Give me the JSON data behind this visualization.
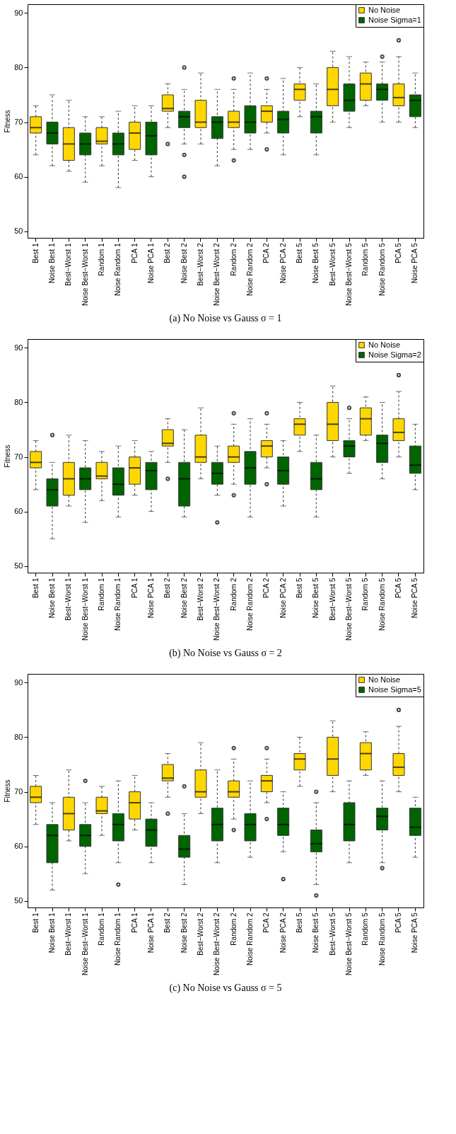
{
  "chart_data": [
    {
      "type": "box",
      "title": "(a) No Noise vs Gauss σ = 1",
      "ylabel": "Fitness",
      "ylim": [
        48.8,
        91.6
      ],
      "yticks": [
        50,
        60,
        70,
        80,
        90
      ],
      "legend": "top right",
      "categories": [
        "Best 1",
        "Noise Best 1",
        "Best−Worst 1",
        "Noise Best−Worst 1",
        "Random 1",
        "Noise Random 1",
        "PCA 1",
        "Noise PCA 1",
        "Best 2",
        "Noise Best 2",
        "Best−Worst 2",
        "Noise Best−Worst 2",
        "Random 2",
        "Noise Random 2",
        "PCA 2",
        "Noise PCA 2",
        "Best 5",
        "Noise Best 5",
        "Best−Worst 5",
        "Noise Best−Worst 5",
        "Random 5",
        "Noise Random 5",
        "PCA 5",
        "Noise PCA 5"
      ],
      "series": [
        {
          "name": "No Noise",
          "color": "#ffd700",
          "x": [
            "Best 1",
            "Best−Worst 1",
            "Random 1",
            "PCA 1",
            "Best 2",
            "Best−Worst 2",
            "Random 2",
            "PCA 2",
            "Best 5",
            "Best−Worst 5",
            "Random 5",
            "PCA 5"
          ],
          "boxes": [
            {
              "low": 64,
              "q1": 68,
              "median": 69,
              "q3": 71,
              "high": 73
            },
            {
              "low": 61,
              "q1": 63,
              "median": 66,
              "q3": 69,
              "high": 74
            },
            {
              "low": 62,
              "q1": 66,
              "median": 66.5,
              "q3": 69,
              "high": 71
            },
            {
              "low": 63,
              "q1": 65,
              "median": 68,
              "q3": 70,
              "high": 73
            },
            {
              "low": 69,
              "q1": 72,
              "median": 72.5,
              "q3": 75,
              "high": 77,
              "outliers": [
                66
              ]
            },
            {
              "low": 66,
              "q1": 69,
              "median": 70,
              "q3": 74,
              "high": 79
            },
            {
              "low": 65,
              "q1": 69,
              "median": 70,
              "q3": 72,
              "high": 76,
              "outliers": [
                78,
                63
              ]
            },
            {
              "low": 68,
              "q1": 70,
              "median": 72,
              "q3": 73,
              "high": 76,
              "outliers": [
                78,
                65
              ]
            },
            {
              "low": 71,
              "q1": 74,
              "median": 76,
              "q3": 77,
              "high": 80
            },
            {
              "low": 70,
              "q1": 73,
              "median": 76,
              "q3": 80,
              "high": 83
            },
            {
              "low": 73,
              "q1": 74,
              "median": 77,
              "q3": 79,
              "high": 81
            },
            {
              "low": 70,
              "q1": 73,
              "median": 74.5,
              "q3": 77,
              "high": 82,
              "outliers": [
                85
              ]
            }
          ]
        },
        {
          "name": "Noise Sigma=1",
          "color": "#006400",
          "x": [
            "Noise Best 1",
            "Noise Best−Worst 1",
            "Noise Random 1",
            "Noise PCA 1",
            "Noise Best 2",
            "Noise Best−Worst 2",
            "Noise Random 2",
            "Noise PCA 2",
            "Noise Best 5",
            "Noise Best−Worst 5",
            "Noise Random 5",
            "Noise PCA 5"
          ],
          "boxes": [
            {
              "low": 62,
              "q1": 66,
              "median": 68,
              "q3": 70,
              "high": 75
            },
            {
              "low": 59,
              "q1": 64,
              "median": 66,
              "q3": 68,
              "high": 71
            },
            {
              "low": 58,
              "q1": 64,
              "median": 66,
              "q3": 68,
              "high": 72
            },
            {
              "low": 60,
              "q1": 64,
              "median": 67.5,
              "q3": 70,
              "high": 73
            },
            {
              "low": 66,
              "q1": 69,
              "median": 71,
              "q3": 72,
              "high": 76,
              "outliers": [
                80,
                64,
                60
              ]
            },
            {
              "low": 62,
              "q1": 67,
              "median": 70,
              "q3": 71,
              "high": 76
            },
            {
              "low": 65,
              "q1": 68,
              "median": 70,
              "q3": 73,
              "high": 79
            },
            {
              "low": 64,
              "q1": 68,
              "median": 70.5,
              "q3": 72,
              "high": 78
            },
            {
              "low": 64,
              "q1": 68,
              "median": 71,
              "q3": 72,
              "high": 77
            },
            {
              "low": 69,
              "q1": 72,
              "median": 74,
              "q3": 77,
              "high": 82
            },
            {
              "low": 70,
              "q1": 74,
              "median": 76,
              "q3": 77,
              "high": 81,
              "outliers": [
                82
              ]
            },
            {
              "low": 69,
              "q1": 71,
              "median": 74,
              "q3": 75,
              "high": 79
            }
          ]
        }
      ]
    },
    {
      "type": "box",
      "title": "(b) No Noise vs Gauss σ = 2",
      "ylabel": "Fitness",
      "ylim": [
        48.8,
        91.6
      ],
      "yticks": [
        50,
        60,
        70,
        80,
        90
      ],
      "legend": "top right",
      "categories": [
        "Best 1",
        "Noise Best 1",
        "Best−Worst 1",
        "Noise Best−Worst 1",
        "Random 1",
        "Noise Random 1",
        "PCA 1",
        "Noise PCA 1",
        "Best 2",
        "Noise Best 2",
        "Best−Worst 2",
        "Noise Best−Worst 2",
        "Random 2",
        "Noise Random 2",
        "PCA 2",
        "Noise PCA 2",
        "Best 5",
        "Noise Best 5",
        "Best−Worst 5",
        "Noise Best−Worst 5",
        "Random 5",
        "Noise Random 5",
        "PCA 5",
        "Noise PCA 5"
      ],
      "series": [
        {
          "name": "No Noise",
          "color": "#ffd700",
          "x": [
            "Best 1",
            "Best−Worst 1",
            "Random 1",
            "PCA 1",
            "Best 2",
            "Best−Worst 2",
            "Random 2",
            "PCA 2",
            "Best 5",
            "Best−Worst 5",
            "Random 5",
            "PCA 5"
          ],
          "boxes": [
            {
              "low": 64,
              "q1": 68,
              "median": 69,
              "q3": 71,
              "high": 73
            },
            {
              "low": 61,
              "q1": 63,
              "median": 66,
              "q3": 69,
              "high": 74
            },
            {
              "low": 62,
              "q1": 66,
              "median": 66.5,
              "q3": 69,
              "high": 71
            },
            {
              "low": 63,
              "q1": 65,
              "median": 68,
              "q3": 70,
              "high": 73
            },
            {
              "low": 69,
              "q1": 72,
              "median": 72.5,
              "q3": 75,
              "high": 77,
              "outliers": [
                66
              ]
            },
            {
              "low": 66,
              "q1": 69,
              "median": 70,
              "q3": 74,
              "high": 79
            },
            {
              "low": 65,
              "q1": 69,
              "median": 70,
              "q3": 72,
              "high": 76,
              "outliers": [
                78,
                63
              ]
            },
            {
              "low": 68,
              "q1": 70,
              "median": 72,
              "q3": 73,
              "high": 76,
              "outliers": [
                78,
                65
              ]
            },
            {
              "low": 71,
              "q1": 74,
              "median": 76,
              "q3": 77,
              "high": 80
            },
            {
              "low": 70,
              "q1": 73,
              "median": 76,
              "q3": 80,
              "high": 83
            },
            {
              "low": 73,
              "q1": 74,
              "median": 77,
              "q3": 79,
              "high": 81
            },
            {
              "low": 70,
              "q1": 73,
              "median": 74.5,
              "q3": 77,
              "high": 82,
              "outliers": [
                85
              ]
            }
          ]
        },
        {
          "name": "Noise Sigma=2",
          "color": "#006400",
          "x": [
            "Noise Best 1",
            "Noise Best−Worst 1",
            "Noise Random 1",
            "Noise PCA 1",
            "Noise Best 2",
            "Noise Best−Worst 2",
            "Noise Random 2",
            "Noise PCA 2",
            "Noise Best 5",
            "Noise Best−Worst 5",
            "Noise Random 5",
            "Noise PCA 5"
          ],
          "boxes": [
            {
              "low": 55,
              "q1": 61,
              "median": 64,
              "q3": 66,
              "high": 69,
              "outliers": [
                74
              ]
            },
            {
              "low": 58,
              "q1": 64,
              "median": 66,
              "q3": 68,
              "high": 73
            },
            {
              "low": 59,
              "q1": 63,
              "median": 65,
              "q3": 68,
              "high": 72
            },
            {
              "low": 60,
              "q1": 64,
              "median": 67.5,
              "q3": 69,
              "high": 71
            },
            {
              "low": 59,
              "q1": 61,
              "median": 66,
              "q3": 69,
              "high": 75
            },
            {
              "low": 63,
              "q1": 65,
              "median": 67,
              "q3": 69,
              "high": 72,
              "outliers": [
                58
              ]
            },
            {
              "low": 59,
              "q1": 65,
              "median": 68,
              "q3": 71,
              "high": 77
            },
            {
              "low": 61,
              "q1": 65,
              "median": 67.5,
              "q3": 70,
              "high": 73
            },
            {
              "low": 59,
              "q1": 64,
              "median": 66,
              "q3": 69,
              "high": 74
            },
            {
              "low": 67,
              "q1": 70,
              "median": 72,
              "q3": 73,
              "high": 77,
              "outliers": [
                79
              ]
            },
            {
              "low": 66,
              "q1": 69,
              "median": 72.5,
              "q3": 74,
              "high": 80
            },
            {
              "low": 64,
              "q1": 67,
              "median": 68.5,
              "q3": 72,
              "high": 76
            }
          ]
        }
      ]
    },
    {
      "type": "box",
      "title": "(c) No Noise vs Gauss σ = 5",
      "ylabel": "Fitness",
      "ylim": [
        48.8,
        91.6
      ],
      "yticks": [
        50,
        60,
        70,
        80,
        90
      ],
      "legend": "top right",
      "categories": [
        "Best 1",
        "Noise Best 1",
        "Best−Worst 1",
        "Noise Best−Worst 1",
        "Random 1",
        "Noise Random 1",
        "PCA 1",
        "Noise PCA 1",
        "Best 2",
        "Noise Best 2",
        "Best−Worst 2",
        "Noise Best−Worst 2",
        "Random 2",
        "Noise Random 2",
        "PCA 2",
        "Noise PCA 2",
        "Best 5",
        "Noise Best 5",
        "Best−Worst 5",
        "Noise Best−Worst 5",
        "Random 5",
        "Noise Random 5",
        "PCA 5",
        "Noise PCA 5"
      ],
      "series": [
        {
          "name": "No Noise",
          "color": "#ffd700",
          "x": [
            "Best 1",
            "Best−Worst 1",
            "Random 1",
            "PCA 1",
            "Best 2",
            "Best−Worst 2",
            "Random 2",
            "PCA 2",
            "Best 5",
            "Best−Worst 5",
            "Random 5",
            "PCA 5"
          ],
          "boxes": [
            {
              "low": 64,
              "q1": 68,
              "median": 69,
              "q3": 71,
              "high": 73
            },
            {
              "low": 61,
              "q1": 63,
              "median": 66,
              "q3": 69,
              "high": 74
            },
            {
              "low": 62,
              "q1": 66,
              "median": 66.5,
              "q3": 69,
              "high": 71
            },
            {
              "low": 63,
              "q1": 65,
              "median": 68,
              "q3": 70,
              "high": 73
            },
            {
              "low": 69,
              "q1": 72,
              "median": 72.5,
              "q3": 75,
              "high": 77,
              "outliers": [
                66
              ]
            },
            {
              "low": 66,
              "q1": 69,
              "median": 70,
              "q3": 74,
              "high": 79
            },
            {
              "low": 65,
              "q1": 69,
              "median": 70,
              "q3": 72,
              "high": 76,
              "outliers": [
                78,
                63
              ]
            },
            {
              "low": 68,
              "q1": 70,
              "median": 72,
              "q3": 73,
              "high": 76,
              "outliers": [
                78,
                65
              ]
            },
            {
              "low": 71,
              "q1": 74,
              "median": 76,
              "q3": 77,
              "high": 80
            },
            {
              "low": 70,
              "q1": 73,
              "median": 76,
              "q3": 80,
              "high": 83
            },
            {
              "low": 73,
              "q1": 74,
              "median": 77,
              "q3": 79,
              "high": 81
            },
            {
              "low": 70,
              "q1": 73,
              "median": 74.5,
              "q3": 77,
              "high": 82,
              "outliers": [
                85
              ]
            }
          ]
        },
        {
          "name": "Noise Sigma=5",
          "color": "#006400",
          "x": [
            "Noise Best 1",
            "Noise Best−Worst 1",
            "Noise Random 1",
            "Noise PCA 1",
            "Noise Best 2",
            "Noise Best−Worst 2",
            "Noise Random 2",
            "Noise PCA 2",
            "Noise Best 5",
            "Noise Best−Worst 5",
            "Noise Random 5",
            "Noise PCA 5"
          ],
          "boxes": [
            {
              "low": 52,
              "q1": 57,
              "median": 62,
              "q3": 64,
              "high": 68
            },
            {
              "low": 55,
              "q1": 60,
              "median": 62,
              "q3": 64,
              "high": 68,
              "outliers": [
                72
              ]
            },
            {
              "low": 57,
              "q1": 61,
              "median": 64,
              "q3": 66,
              "high": 72,
              "outliers": [
                53
              ]
            },
            {
              "low": 57,
              "q1": 60,
              "median": 63,
              "q3": 65,
              "high": 68
            },
            {
              "low": 53,
              "q1": 58,
              "median": 59.5,
              "q3": 62,
              "high": 66,
              "outliers": [
                71
              ]
            },
            {
              "low": 57,
              "q1": 61,
              "median": 64,
              "q3": 67,
              "high": 74
            },
            {
              "low": 58,
              "q1": 61,
              "median": 64,
              "q3": 66,
              "high": 72
            },
            {
              "low": 59,
              "q1": 62,
              "median": 64,
              "q3": 67,
              "high": 70,
              "outliers": [
                54
              ]
            },
            {
              "low": 53,
              "q1": 59,
              "median": 60.5,
              "q3": 63,
              "high": 68,
              "outliers": [
                70,
                51
              ]
            },
            {
              "low": 57,
              "q1": 61,
              "median": 64,
              "q3": 68,
              "high": 72
            },
            {
              "low": 57,
              "q1": 63,
              "median": 65.5,
              "q3": 67,
              "high": 72,
              "outliers": [
                56
              ]
            },
            {
              "low": 58,
              "q1": 62,
              "median": 63.5,
              "q3": 67,
              "high": 69
            }
          ]
        }
      ]
    }
  ]
}
